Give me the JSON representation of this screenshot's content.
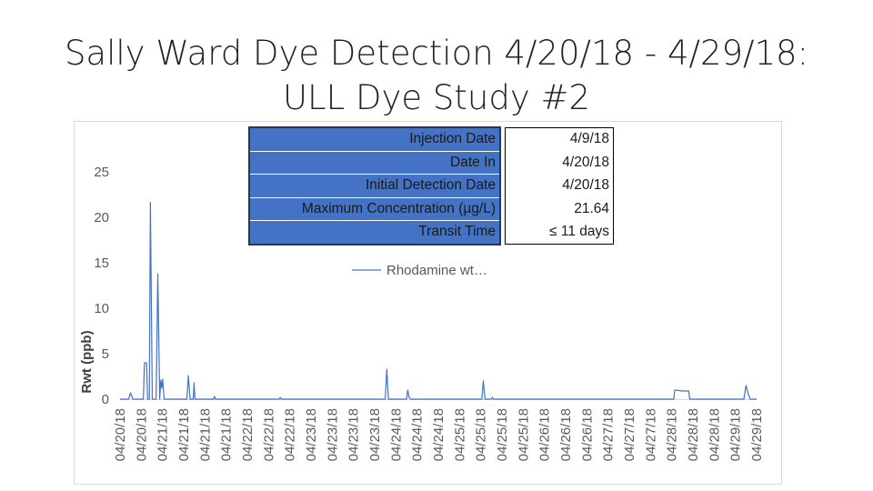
{
  "title": {
    "line1": "Sally Ward Dye Detection 4/20/18 - 4/29/18:",
    "line2": "ULL Dye Study #2"
  },
  "info_table": [
    {
      "label": "Injection Date",
      "value": "4/9/18"
    },
    {
      "label": "Date In",
      "value": "4/20/18"
    },
    {
      "label": "Initial Detection Date",
      "value": "4/20/18"
    },
    {
      "label": "Maximum Concentration (µg/L)",
      "value": "21.64"
    },
    {
      "label": "Transit Time",
      "value": "≤ 11 days"
    }
  ],
  "colors": {
    "series": "#4472c4",
    "table_fill": "#4472c4",
    "axis_text": "#595959",
    "axis_line": "#d9d9d9"
  },
  "chart_data": {
    "type": "line",
    "title": "",
    "xlabel": "",
    "ylabel": "Rwt (ppb)",
    "ylim": [
      0,
      25
    ],
    "yticks": [
      0,
      5,
      10,
      15,
      20,
      25
    ],
    "grid": false,
    "legend": {
      "position": "center",
      "entries": [
        "Rhodamine wt…"
      ]
    },
    "categories": [
      "04/20/18",
      "04/20/18",
      "04/21/18",
      "04/21/18",
      "04/21/18",
      "04/21/18",
      "04/22/18",
      "04/22/18",
      "04/22/18",
      "04/23/18",
      "04/23/18",
      "04/23/18",
      "04/23/18",
      "04/24/18",
      "04/24/18",
      "04/24/18",
      "04/25/18",
      "04/25/18",
      "04/25/18",
      "04/25/18",
      "04/26/18",
      "04/26/18",
      "04/26/18",
      "04/27/18",
      "04/27/18",
      "04/27/18",
      "04/28/18",
      "04/28/18",
      "04/28/18",
      "04/29/18",
      "04/29/18"
    ],
    "series": [
      {
        "name": "Rhodamine wt…",
        "points": [
          [
            0.0,
            0
          ],
          [
            0.4,
            0
          ],
          [
            0.5,
            0.7
          ],
          [
            0.6,
            0
          ],
          [
            1.1,
            0
          ],
          [
            1.15,
            4.0
          ],
          [
            1.25,
            4.0
          ],
          [
            1.3,
            0
          ],
          [
            1.38,
            0
          ],
          [
            1.43,
            21.64
          ],
          [
            1.52,
            0
          ],
          [
            1.7,
            0
          ],
          [
            1.78,
            13.8
          ],
          [
            1.87,
            0
          ],
          [
            1.92,
            2.1
          ],
          [
            1.97,
            1.2
          ],
          [
            2.01,
            2.2
          ],
          [
            2.08,
            0
          ],
          [
            3.15,
            0
          ],
          [
            3.22,
            2.6
          ],
          [
            3.3,
            0
          ],
          [
            3.45,
            0
          ],
          [
            3.49,
            1.8
          ],
          [
            3.53,
            0
          ],
          [
            4.4,
            0
          ],
          [
            4.45,
            0.3
          ],
          [
            4.5,
            0
          ],
          [
            7.5,
            0
          ],
          [
            7.55,
            0.2
          ],
          [
            7.6,
            0
          ],
          [
            12.5,
            0
          ],
          [
            12.57,
            3.3
          ],
          [
            12.65,
            0
          ],
          [
            13.5,
            0
          ],
          [
            13.56,
            1.0
          ],
          [
            13.62,
            0.2
          ],
          [
            13.7,
            0
          ],
          [
            17.05,
            0
          ],
          [
            17.12,
            2.0
          ],
          [
            17.2,
            0
          ],
          [
            17.5,
            0
          ],
          [
            17.55,
            0.2
          ],
          [
            17.6,
            0
          ],
          [
            26.1,
            0
          ],
          [
            26.14,
            1.0
          ],
          [
            26.5,
            0.9
          ],
          [
            26.8,
            0.9
          ],
          [
            26.85,
            0
          ],
          [
            29.4,
            0
          ],
          [
            29.5,
            1.5
          ],
          [
            29.6,
            0.6
          ],
          [
            29.7,
            0
          ],
          [
            30.0,
            0
          ]
        ]
      }
    ]
  }
}
